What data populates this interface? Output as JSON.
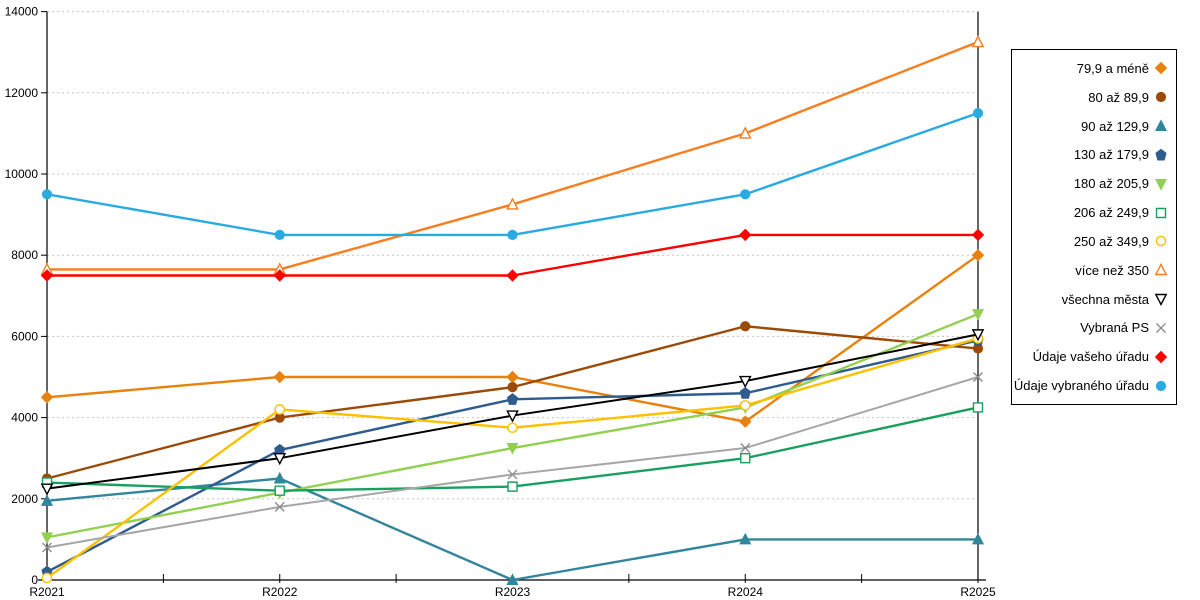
{
  "chart_data": {
    "type": "line",
    "title": "",
    "xlabel": "",
    "ylabel": "",
    "categories": [
      "R2021",
      "R2022",
      "R2023",
      "R2024",
      "R2025"
    ],
    "ylim": [
      0,
      14000
    ],
    "ytick_step": 2000,
    "grid": "horizontal-dashed",
    "legend_position": "right",
    "series": [
      {
        "name": "79,9 a méně",
        "marker": "diamond",
        "fill": "solid",
        "color": "#E8820C",
        "values": [
          4500,
          5000,
          5000,
          3900,
          8000
        ]
      },
      {
        "name": "80 až 89,9",
        "marker": "circle",
        "fill": "solid",
        "color": "#9C4A08",
        "values": [
          2500,
          4000,
          4750,
          6250,
          5700
        ]
      },
      {
        "name": "90 až 129,9",
        "marker": "triangle",
        "fill": "solid",
        "color": "#31859C",
        "values": [
          1950,
          2500,
          0,
          1000,
          1000
        ]
      },
      {
        "name": "130 až 179,9",
        "marker": "pentagon",
        "fill": "solid",
        "color": "#2E5C8F",
        "values": [
          200,
          3200,
          4450,
          4600,
          5900
        ]
      },
      {
        "name": "180 až 205,9",
        "marker": "triangle-down",
        "fill": "solid",
        "color": "#92D050",
        "values": [
          1050,
          2150,
          3250,
          4250,
          6550
        ]
      },
      {
        "name": "206 až 249,9",
        "marker": "square",
        "fill": "open",
        "color": "#18A05E",
        "values": [
          2400,
          2200,
          2300,
          3000,
          4250
        ]
      },
      {
        "name": "250 až 349,9",
        "marker": "circle",
        "fill": "open",
        "color": "#FFC000",
        "values": [
          50,
          4200,
          3750,
          4300,
          5950
        ]
      },
      {
        "name": "více než 350",
        "marker": "triangle",
        "fill": "open",
        "color": "#FA7D1E",
        "values": [
          7650,
          7650,
          9250,
          11000,
          13250
        ]
      },
      {
        "name": "všechna města",
        "marker": "triangle-down",
        "fill": "open",
        "color": "#000000",
        "values": [
          2250,
          3000,
          4050,
          4900,
          6050
        ]
      },
      {
        "name": "Vybraná PS",
        "marker": "x",
        "fill": "open",
        "color": "#A6A6A6",
        "values": [
          800,
          1800,
          2600,
          3250,
          5000
        ]
      },
      {
        "name": "Údaje vašeho úřadu",
        "marker": "diamond",
        "fill": "solid",
        "color": "#FF0000",
        "values": [
          7500,
          7500,
          7500,
          8500,
          8500
        ]
      },
      {
        "name": "Údaje vybraného úřadu",
        "marker": "circle",
        "fill": "solid",
        "color": "#29ABE2",
        "values": [
          9500,
          8500,
          8500,
          9500,
          11500
        ]
      }
    ]
  },
  "colors": {
    "axis": "#000000",
    "gridline": "#C6C6C6",
    "background": "#FFFFFF"
  }
}
